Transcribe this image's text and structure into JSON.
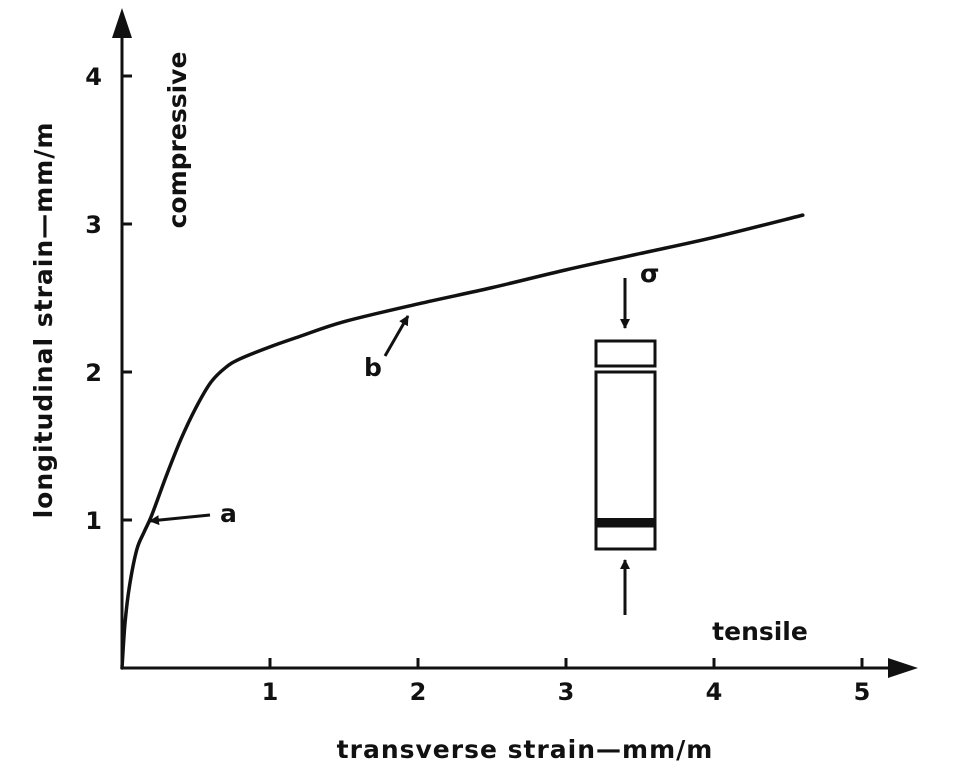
{
  "chart_data": {
    "type": "line",
    "title": "",
    "xlabel": "transverse strain—mm/m",
    "ylabel": "longitudinal strain—mm/m",
    "xlim": [
      0,
      5
    ],
    "ylim": [
      0,
      4.4
    ],
    "x_ticks": [
      "1",
      "2",
      "3",
      "4",
      "5"
    ],
    "y_ticks": [
      "1",
      "2",
      "3",
      "4"
    ],
    "grid": false,
    "legend": "none",
    "series": [
      {
        "x": [
          0,
          0.02,
          0.05,
          0.1,
          0.15,
          0.2,
          0.3,
          0.4,
          0.5,
          0.6,
          0.7,
          0.8,
          1.0,
          1.2,
          1.5,
          2.0,
          2.5,
          3.0,
          3.5,
          4.0,
          4.6
        ],
        "y": [
          0,
          0.3,
          0.55,
          0.8,
          0.92,
          1.03,
          1.3,
          1.55,
          1.76,
          1.93,
          2.03,
          2.09,
          2.17,
          2.24,
          2.34,
          2.46,
          2.57,
          2.69,
          2.8,
          2.91,
          3.06
        ]
      }
    ],
    "annotations": {
      "y_axis_direction": "compressive",
      "x_axis_direction": "tensile",
      "a": {
        "text": "a",
        "x": 0.16,
        "y": 0.99
      },
      "b": {
        "text": "b",
        "x": 1.95,
        "y": 2.46
      },
      "stress": "σ"
    }
  }
}
